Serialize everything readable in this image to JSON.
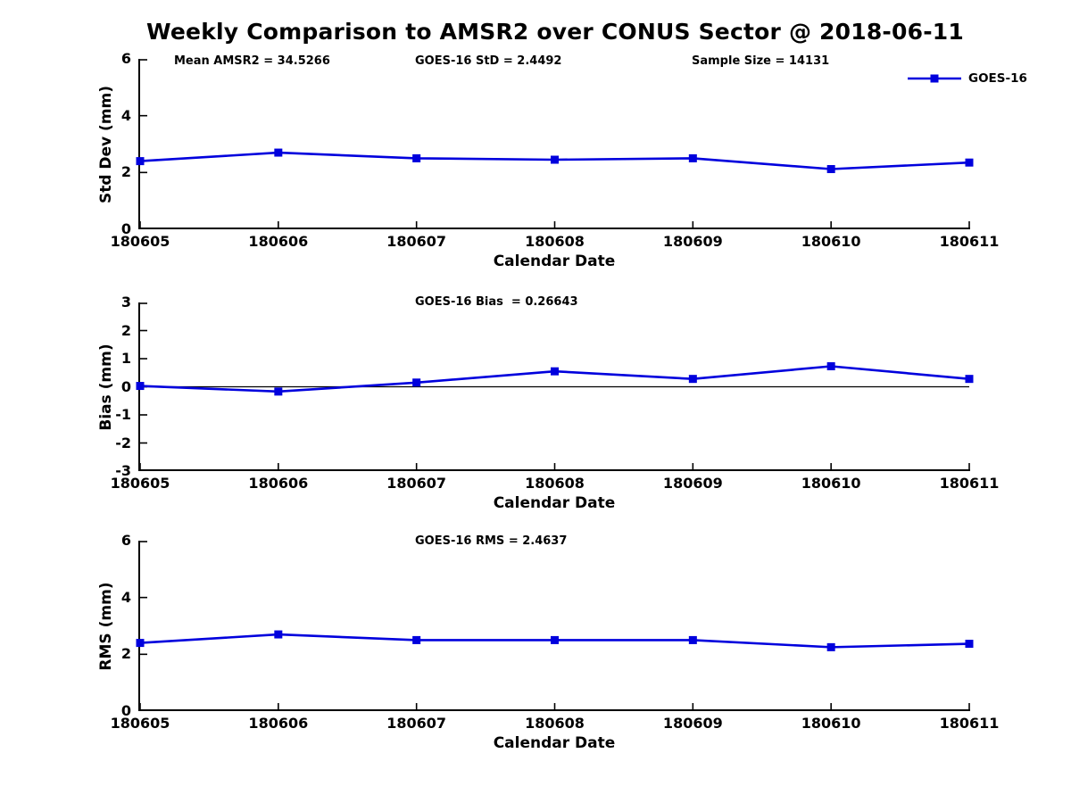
{
  "title": "Weekly Comparison to AMSR2 over CONUS Sector @ 2018-06-11",
  "colors": {
    "line": "#0000DD",
    "axis": "#000000",
    "text": "#000000",
    "background": "#ffffff"
  },
  "chart_data": [
    {
      "type": "line",
      "name": "std-dev",
      "title": "",
      "ylabel": "Std Dev (mm)",
      "xlabel": "Calendar Date",
      "categories": [
        "180605",
        "180606",
        "180607",
        "180608",
        "180609",
        "180610",
        "180611"
      ],
      "series": [
        {
          "name": "GOES-16",
          "values": [
            2.4,
            2.7,
            2.5,
            2.45,
            2.5,
            2.12,
            2.35
          ]
        }
      ],
      "ylim": [
        0,
        6
      ],
      "yticks": [
        0,
        2,
        4,
        6
      ],
      "grid": false,
      "marker": "square",
      "legend_position": "top-right",
      "legend_frame": false,
      "annotations": [
        "Mean AMSR2 = 34.5266",
        "GOES-16 StD = 2.4492",
        "Sample Size = 14131"
      ]
    },
    {
      "type": "line",
      "name": "bias",
      "title": "GOES-16 Bias  = 0.26643",
      "ylabel": "Bias (mm)",
      "xlabel": "Calendar Date",
      "categories": [
        "180605",
        "180606",
        "180607",
        "180608",
        "180609",
        "180610",
        "180611"
      ],
      "series": [
        {
          "name": "GOES-16",
          "values": [
            0.03,
            -0.17,
            0.15,
            0.55,
            0.28,
            0.73,
            0.28
          ]
        }
      ],
      "ylim": [
        -3,
        3
      ],
      "yticks": [
        -3,
        -2,
        -1,
        0,
        1,
        2,
        3
      ],
      "zero_line": true,
      "grid": false,
      "marker": "square"
    },
    {
      "type": "line",
      "name": "rms",
      "title": "GOES-16 RMS = 2.4637",
      "ylabel": "RMS (mm)",
      "xlabel": "Calendar Date",
      "categories": [
        "180605",
        "180606",
        "180607",
        "180608",
        "180609",
        "180610",
        "180611"
      ],
      "series": [
        {
          "name": "GOES-16",
          "values": [
            2.4,
            2.7,
            2.5,
            2.5,
            2.5,
            2.25,
            2.37
          ]
        }
      ],
      "ylim": [
        0,
        6
      ],
      "yticks": [
        0,
        2,
        4,
        6
      ],
      "grid": false,
      "marker": "square"
    }
  ]
}
